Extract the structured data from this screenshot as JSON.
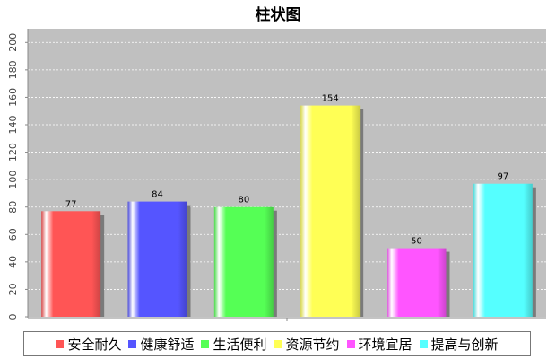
{
  "chart_data": {
    "type": "bar",
    "title": "柱状图",
    "categories": [
      "安全耐久",
      "健康舒适",
      "生活便利",
      "资源节约",
      "环境宜居",
      "提高与创新"
    ],
    "values": [
      77,
      84,
      80,
      154,
      50,
      97
    ],
    "colors": [
      "#ff5555",
      "#5555ff",
      "#55ff55",
      "#ffff55",
      "#ff55ff",
      "#55ffff"
    ],
    "ylim": [
      0,
      210
    ],
    "yticks": [
      0,
      20,
      40,
      60,
      80,
      100,
      120,
      140,
      160,
      180,
      200
    ],
    "grid": true,
    "legend_position": "bottom",
    "plot_background": "#c0c0c0"
  }
}
